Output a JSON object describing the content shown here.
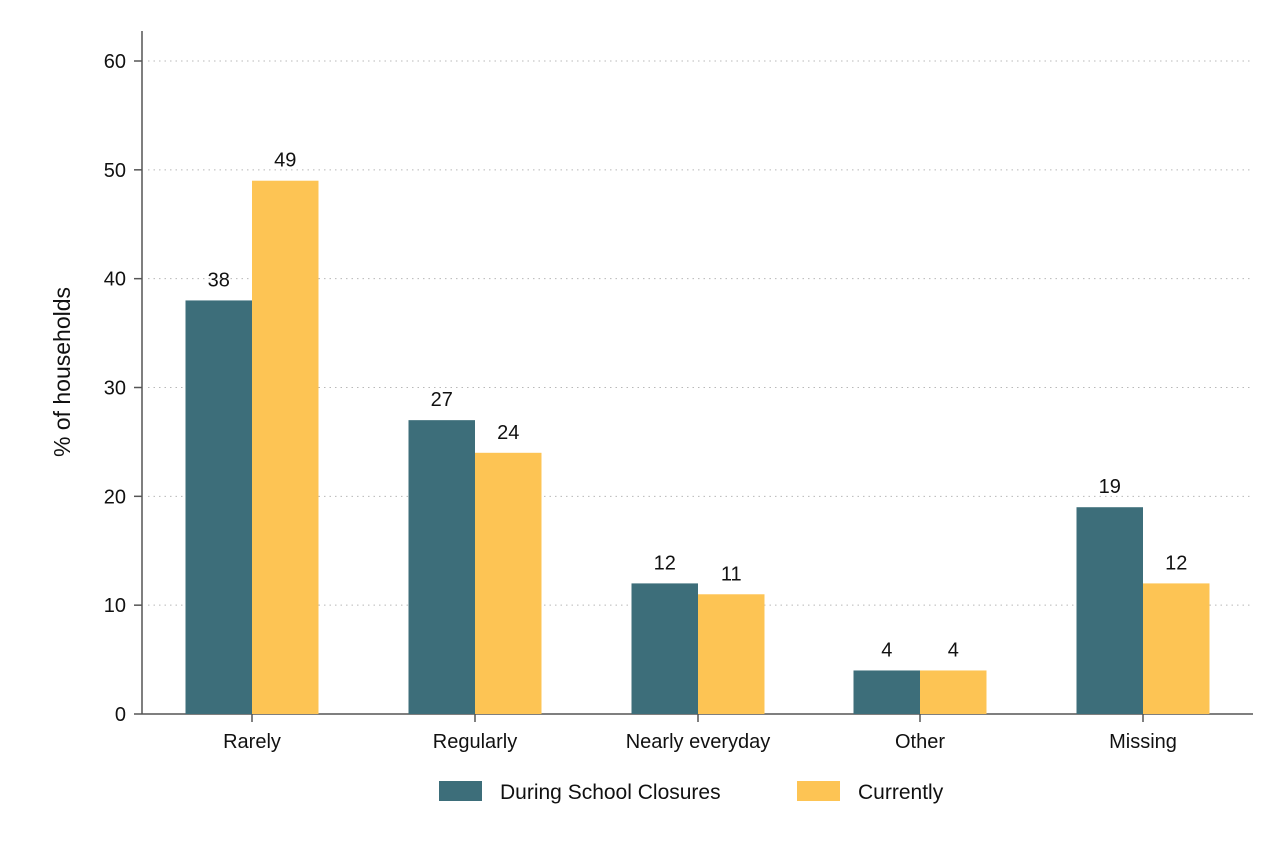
{
  "chart_data": {
    "type": "bar",
    "title": "",
    "xlabel": "",
    "ylabel": "% of households",
    "ylim": [
      0,
      60
    ],
    "yticks": [
      0,
      10,
      20,
      30,
      40,
      50,
      60
    ],
    "grid": true,
    "legend_position": "bottom",
    "categories": [
      "Rarely",
      "Regularly",
      "Nearly everyday",
      "Other",
      "Missing"
    ],
    "series": [
      {
        "name": "During School Closures",
        "color": "#3d6e7a",
        "values": [
          38,
          27,
          12,
          4,
          19
        ]
      },
      {
        "name": "Currently",
        "color": "#fdc454",
        "values": [
          49,
          24,
          11,
          4,
          12
        ]
      }
    ],
    "data_labels": true
  }
}
